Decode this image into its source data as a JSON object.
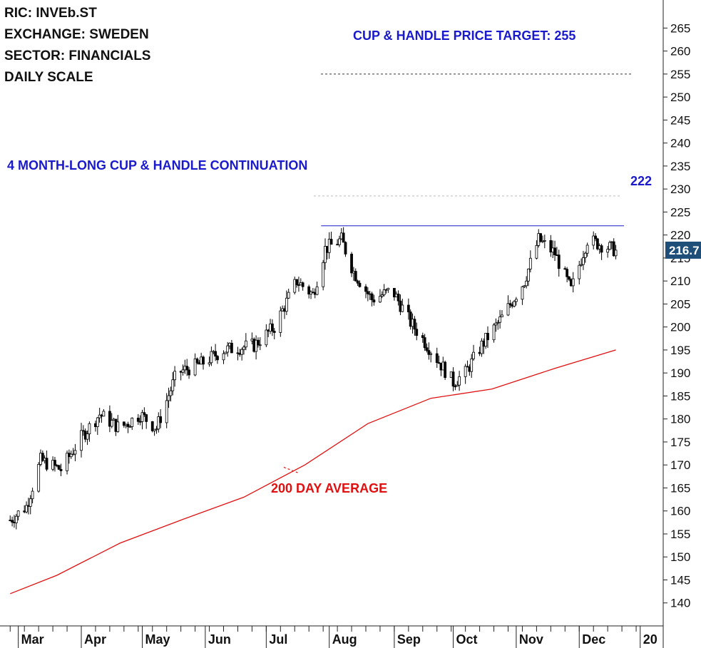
{
  "info": {
    "ric": "RIC: INVEb.ST",
    "exchange": "EXCHANGE: SWEDEN",
    "sector": "SECTOR: FINANCIALS",
    "scale": "DAILY SCALE"
  },
  "annotations": {
    "target": "CUP & HANDLE PRICE TARGET: 255",
    "pattern": "4 MONTH-LONG CUP & HANDLE CONTINUATION",
    "resistance_label": "222",
    "ma_label": "200 DAY AVERAGE",
    "last_price": "216.7"
  },
  "colors": {
    "candle": "#000000",
    "ma": "#e01010",
    "annotation_blue": "#1a1acc",
    "badge": "#1f4e79"
  },
  "chart_data": {
    "type": "candlestick",
    "y_axis_side": "right",
    "ylim": [
      135,
      268
    ],
    "yticks": [
      140,
      145,
      150,
      155,
      160,
      165,
      170,
      175,
      180,
      185,
      190,
      195,
      200,
      205,
      210,
      215,
      220,
      225,
      230,
      235,
      240,
      245,
      250,
      255,
      260,
      265
    ],
    "x_labels": [
      "Mar",
      "Apr",
      "May",
      "Jun",
      "Jul",
      "Aug",
      "Sep",
      "Oct",
      "Nov",
      "Dec",
      "20"
    ],
    "grid": false,
    "levels": {
      "resistance": 222,
      "target": 255,
      "upper_dotted": 228.5
    },
    "price_path": [
      {
        "date": "2019-02-25",
        "close": 158
      },
      {
        "date": "2019-03-05",
        "close": 161
      },
      {
        "date": "2019-03-12",
        "close": 171
      },
      {
        "date": "2019-03-22",
        "close": 169
      },
      {
        "date": "2019-04-01",
        "close": 176
      },
      {
        "date": "2019-04-10",
        "close": 181
      },
      {
        "date": "2019-04-20",
        "close": 178
      },
      {
        "date": "2019-04-30",
        "close": 181
      },
      {
        "date": "2019-05-08",
        "close": 178
      },
      {
        "date": "2019-05-18",
        "close": 190
      },
      {
        "date": "2019-05-30",
        "close": 192
      },
      {
        "date": "2019-06-10",
        "close": 195
      },
      {
        "date": "2019-06-25",
        "close": 196
      },
      {
        "date": "2019-07-05",
        "close": 200
      },
      {
        "date": "2019-07-16",
        "close": 210
      },
      {
        "date": "2019-07-24",
        "close": 207
      },
      {
        "date": "2019-07-30",
        "close": 217
      },
      {
        "date": "2019-08-07",
        "close": 219
      },
      {
        "date": "2019-08-13",
        "close": 212
      },
      {
        "date": "2019-08-22",
        "close": 206
      },
      {
        "date": "2019-09-01",
        "close": 208
      },
      {
        "date": "2019-09-10",
        "close": 201
      },
      {
        "date": "2019-09-20",
        "close": 195
      },
      {
        "date": "2019-10-01",
        "close": 188
      },
      {
        "date": "2019-10-07",
        "close": 190
      },
      {
        "date": "2019-10-15",
        "close": 196
      },
      {
        "date": "2019-10-25",
        "close": 202
      },
      {
        "date": "2019-11-05",
        "close": 210
      },
      {
        "date": "2019-11-12",
        "close": 219
      },
      {
        "date": "2019-11-20",
        "close": 216
      },
      {
        "date": "2019-11-28",
        "close": 208
      },
      {
        "date": "2019-12-06",
        "close": 219
      },
      {
        "date": "2019-12-12",
        "close": 218
      },
      {
        "date": "2019-12-20",
        "close": 216.7
      }
    ],
    "ma200": [
      {
        "date": "2019-02-25",
        "value": 142
      },
      {
        "date": "2019-03-20",
        "value": 146
      },
      {
        "date": "2019-04-20",
        "value": 153
      },
      {
        "date": "2019-05-20",
        "value": 158
      },
      {
        "date": "2019-06-20",
        "value": 163
      },
      {
        "date": "2019-07-20",
        "value": 170
      },
      {
        "date": "2019-08-20",
        "value": 179
      },
      {
        "date": "2019-09-20",
        "value": 184.5
      },
      {
        "date": "2019-10-20",
        "value": 186.5
      },
      {
        "date": "2019-11-20",
        "value": 191
      },
      {
        "date": "2019-12-20",
        "value": 195
      }
    ]
  }
}
